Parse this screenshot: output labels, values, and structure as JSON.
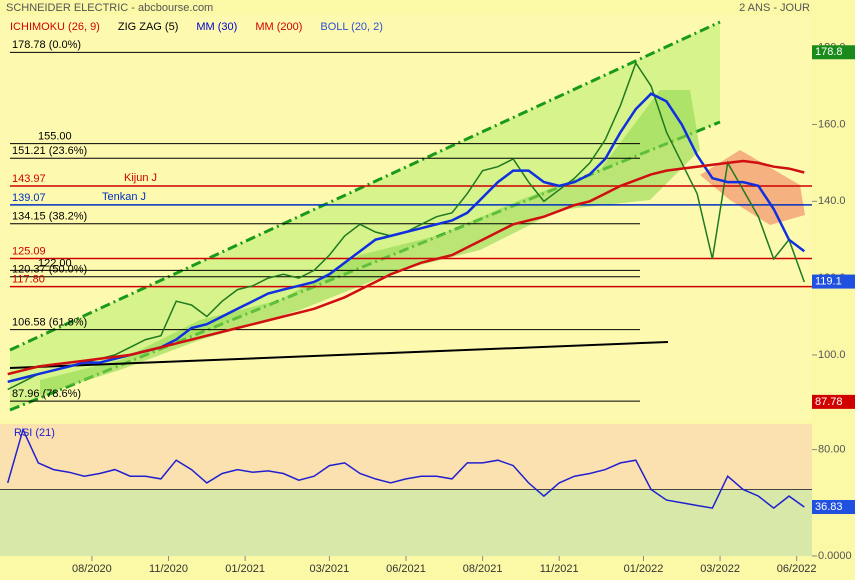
{
  "header": {
    "title": "SCHNEIDER ELECTRIC - abcbourse.com",
    "period": "2 ANS - JOUR"
  },
  "indicators": [
    {
      "name": "ICHIMOKU (26, 9)",
      "color": "#d00000"
    },
    {
      "name": "ZIG ZAG (5)",
      "color": "#000000"
    },
    {
      "name": "MM (30)",
      "color": "#0000cc"
    },
    {
      "name": "MM (200)",
      "color": "#d00000"
    },
    {
      "name": "BOLL (20, 2)",
      "color": "#3050d0"
    }
  ],
  "chart_data": [
    {
      "type": "line",
      "x": [
        0,
        2,
        4,
        6,
        8,
        10,
        12,
        14,
        16,
        18,
        20,
        22,
        24,
        26,
        28,
        30,
        32,
        34,
        36,
        38,
        40,
        42,
        44,
        46,
        48,
        50,
        52,
        54,
        56,
        58,
        60,
        62,
        64,
        66,
        68,
        70,
        72,
        74,
        76,
        78,
        80,
        82,
        84,
        86,
        88,
        90,
        92,
        94,
        96,
        98,
        100,
        102,
        104
      ],
      "xlim": [
        -1,
        105
      ],
      "xticks": [
        {
          "value": 11,
          "label": "08/2020"
        },
        {
          "value": 21,
          "label": "11/2020"
        },
        {
          "value": 31,
          "label": "01/2021"
        },
        {
          "value": 42,
          "label": "03/2021"
        },
        {
          "value": 52,
          "label": "06/2021"
        },
        {
          "value": 62,
          "label": "08/2021"
        },
        {
          "value": 72,
          "label": "11/2021"
        },
        {
          "value": 83,
          "label": "01/2022"
        },
        {
          "value": 93,
          "label": "03/2022"
        },
        {
          "value": 103,
          "label": "06/2022"
        }
      ],
      "ylim": [
        82.8,
        188.5
      ],
      "yticks": [
        {
          "value": 180,
          "label": "180.0"
        },
        {
          "value": 160,
          "label": "160.0"
        },
        {
          "value": 140,
          "label": "140.0"
        },
        {
          "value": 120,
          "label": "120.0"
        },
        {
          "value": 100,
          "label": "100.0"
        }
      ],
      "series": [
        {
          "color": "#1f7a1f",
          "width": 1.5,
          "values": [
            91,
            93,
            95,
            96,
            97,
            98,
            99,
            100,
            102,
            104,
            105,
            114,
            113,
            110,
            114,
            117,
            118,
            120,
            121,
            120,
            122,
            126,
            131,
            134,
            132,
            131,
            132,
            134,
            136,
            137,
            142,
            148,
            149,
            151,
            145,
            140,
            143,
            146,
            150,
            156,
            165,
            176,
            170,
            158,
            150,
            142,
            125,
            150,
            143,
            136,
            125,
            130,
            119
          ]
        },
        {
          "color": "#1030e0",
          "width": 2.5,
          "values": [
            93,
            94,
            95,
            96,
            97,
            98,
            98,
            99,
            100,
            101,
            102,
            104,
            107,
            108,
            110,
            112,
            114,
            116,
            117,
            118,
            119,
            121,
            124,
            127,
            130,
            131,
            132,
            133,
            134,
            135,
            137,
            141,
            145,
            148,
            148,
            145,
            144,
            145,
            147,
            151,
            158,
            164,
            168,
            166,
            160,
            152,
            146,
            145,
            145,
            144,
            138,
            130,
            127
          ]
        },
        {
          "color": "#d01010",
          "width": 2.5,
          "values": [
            95,
            96,
            97,
            97.5,
            98,
            98.5,
            99,
            99.5,
            100,
            101,
            102,
            103,
            104,
            105,
            106,
            107,
            108,
            109,
            110,
            111,
            112,
            113.5,
            115,
            117,
            119,
            121,
            122.5,
            124,
            125,
            126,
            128,
            130,
            132,
            134,
            135,
            136,
            137.5,
            139,
            140,
            142,
            144,
            145.5,
            147,
            148,
            148.5,
            149,
            149.5,
            150,
            150.5,
            150,
            149,
            148.5,
            147.5
          ]
        }
      ],
      "levels": [
        {
          "value": 178.78,
          "label": "178.78 (0.0%)",
          "color": "#000000"
        },
        {
          "value": 155.0,
          "label": "155.00",
          "color": "#000000"
        },
        {
          "value": 151.21,
          "label": "151.21 (23.6%)",
          "color": "#000000"
        },
        {
          "value": 143.97,
          "label": "143.97",
          "color": "#d00000",
          "name": "Kijun J"
        },
        {
          "value": 139.07,
          "label": "139.07",
          "color": "#0030c0",
          "name": "Tenkan J"
        },
        {
          "value": 134.15,
          "label": "134.15  (38.2%)",
          "color": "#000000"
        },
        {
          "value": 125.09,
          "label": "125.09",
          "color": "#d00000"
        },
        {
          "value": 122.0,
          "label": "122.00",
          "color": "#000000"
        },
        {
          "value": 120.37,
          "label": "120.37 (50.0%)",
          "color": "#000000"
        },
        {
          "value": 117.8,
          "label": "117.80",
          "color": "#d00000"
        },
        {
          "value": 106.58,
          "label": "106.58  (61.8%)",
          "color": "#000000"
        },
        {
          "value": 87.96,
          "label": "87.96  (78.6%)",
          "color": "#000000"
        }
      ],
      "markers": [
        {
          "value": 178.8,
          "color": "#1a8a1a"
        },
        {
          "value": 119.1,
          "color": "#2050e0"
        },
        {
          "value": 87.78,
          "color": "#d00000"
        }
      ]
    },
    {
      "type": "line",
      "title": "RSI (21)",
      "ylim": [
        0,
        100
      ],
      "yticks": [
        {
          "value": 80,
          "label": "80.00"
        },
        {
          "value": 0,
          "label": "0.0000"
        }
      ],
      "series": [
        {
          "color": "#2020d0",
          "width": 1.5,
          "values": [
            55,
            95,
            70,
            65,
            63,
            60,
            62,
            65,
            60,
            60,
            58,
            72,
            65,
            55,
            62,
            65,
            63,
            64,
            62,
            57,
            60,
            68,
            70,
            62,
            58,
            55,
            58,
            60,
            60,
            58,
            70,
            70,
            72,
            68,
            55,
            45,
            55,
            60,
            62,
            65,
            70,
            72,
            50,
            42,
            40,
            38,
            36,
            60,
            50,
            45,
            36,
            45,
            36.83
          ]
        }
      ],
      "markers": [
        {
          "value": 36.83,
          "color": "#2050e0"
        }
      ]
    }
  ]
}
